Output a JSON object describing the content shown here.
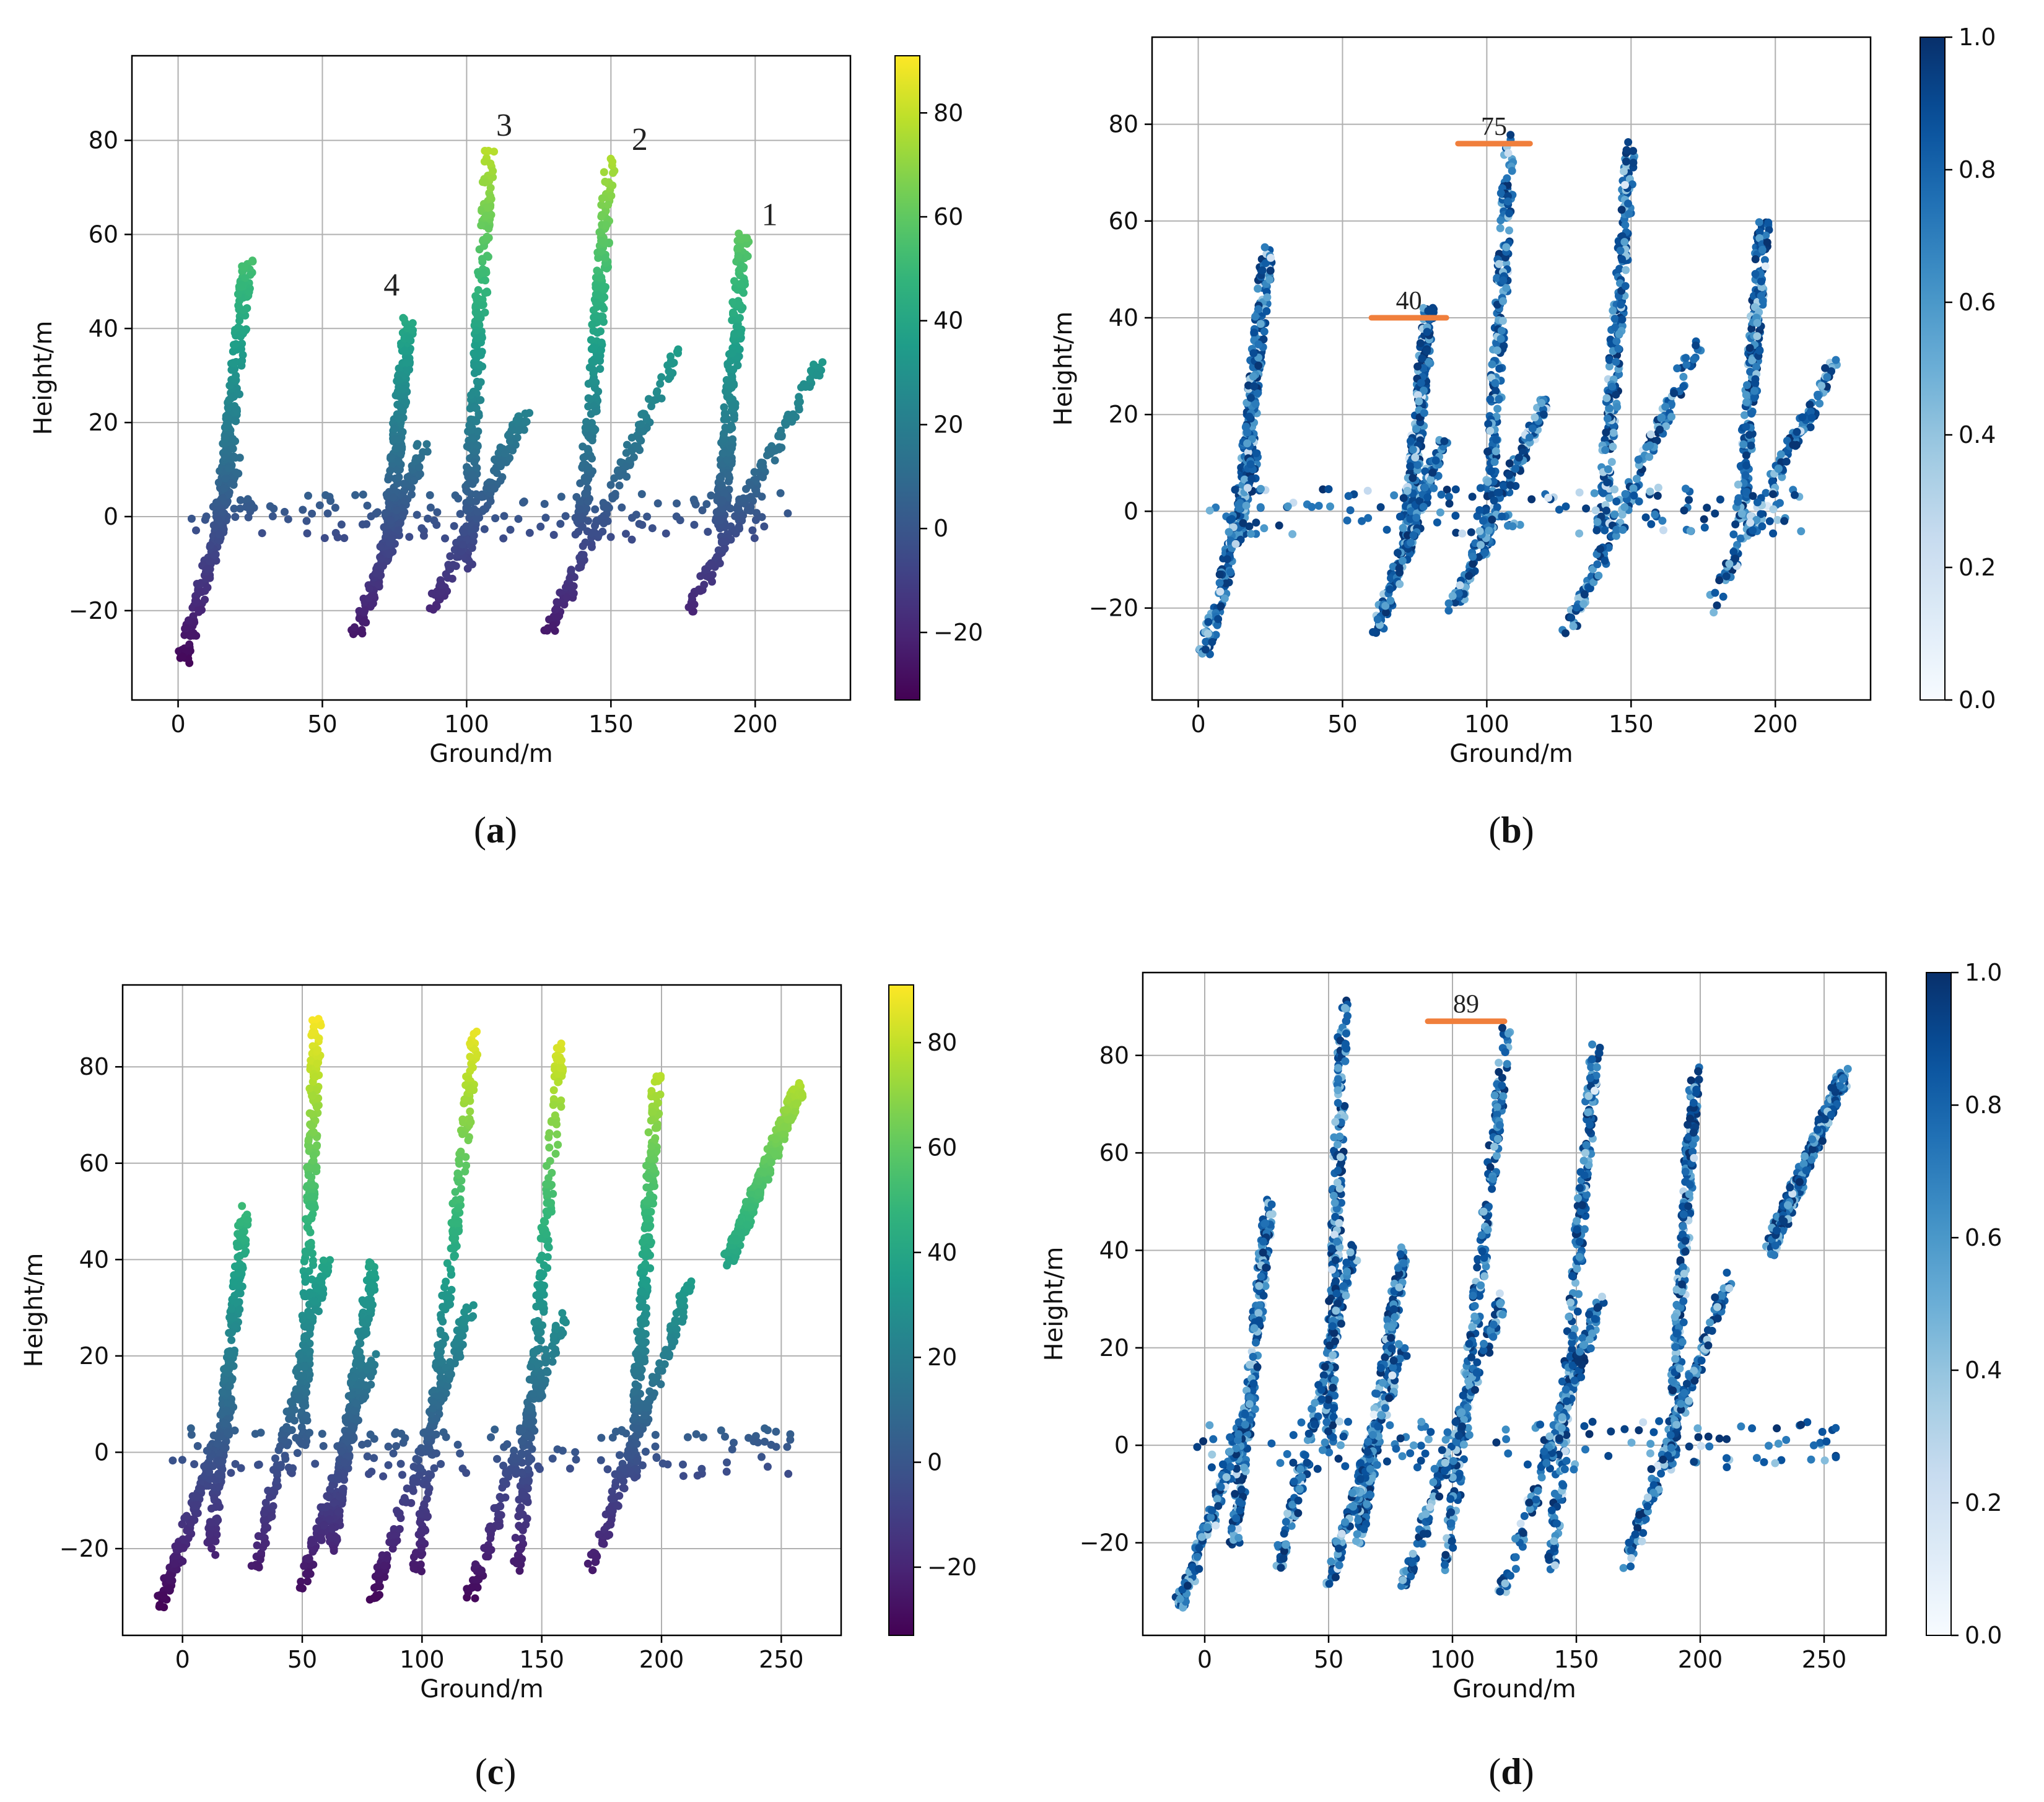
{
  "figure": {
    "panels": [
      "a",
      "b",
      "c",
      "d"
    ]
  },
  "chart_data": [
    {
      "id": "a",
      "type": "scatter",
      "panel_label": "a",
      "xlabel": "Ground/m",
      "ylabel": "Height/m",
      "xlim": [
        -16,
        233
      ],
      "ylim": [
        -39,
        98
      ],
      "xticks": [
        0,
        50,
        100,
        150,
        200
      ],
      "yticks": [
        -20,
        0,
        20,
        40,
        60,
        80
      ],
      "grid": true,
      "colorbar": {
        "colormap": "viridis",
        "label": "",
        "range": [
          -33,
          91
        ],
        "ticks": [
          -20,
          0,
          20,
          40,
          60,
          80
        ]
      },
      "color_by": "height",
      "annotations": [
        {
          "text": "1",
          "x": 205,
          "y": 62
        },
        {
          "text": "2",
          "x": 160,
          "y": 78
        },
        {
          "text": "3",
          "x": 113,
          "y": 81
        },
        {
          "text": "4",
          "x": 74,
          "y": 47
        }
      ],
      "structures": [
        {
          "name": "building-1",
          "x0": 188,
          "y0": -2,
          "x1": 196,
          "y1": 60,
          "ramp": [
            177,
            -20,
            222,
            32
          ]
        },
        {
          "name": "building-2",
          "x0": 140,
          "y0": -3,
          "x1": 150,
          "y1": 76,
          "ramp": [
            128,
            -25,
            173,
            35
          ]
        },
        {
          "name": "building-3",
          "x0": 100,
          "y0": -10,
          "x1": 108,
          "y1": 78,
          "ramp": [
            88,
            -20,
            120,
            22
          ]
        },
        {
          "name": "building-4",
          "x0": 72,
          "y0": -8,
          "x1": 80,
          "y1": 42,
          "ramp": [
            62,
            -25,
            85,
            15
          ]
        },
        {
          "name": "building-5",
          "x0": 14,
          "y0": -5,
          "x1": 24,
          "y1": 54,
          "ramp": [
            2,
            -30,
            20,
            12
          ]
        }
      ]
    },
    {
      "id": "b",
      "type": "scatter",
      "panel_label": "b",
      "xlabel": "Ground/m",
      "ylabel": "Height/m",
      "xlim": [
        -16,
        233
      ],
      "ylim": [
        -39,
        98
      ],
      "xticks": [
        0,
        50,
        100,
        150,
        200
      ],
      "yticks": [
        -20,
        0,
        20,
        40,
        60,
        80
      ],
      "grid": true,
      "colorbar": {
        "colormap": "Blues",
        "label": "",
        "range": [
          0.0,
          1.0
        ],
        "ticks": [
          0.0,
          0.2,
          0.4,
          0.6,
          0.8,
          1.0
        ]
      },
      "color_by": "coherence",
      "markers": [
        {
          "text": "40",
          "x0": 60,
          "x1": 86,
          "y": 40
        },
        {
          "text": "75",
          "x0": 90,
          "x1": 115,
          "y": 76
        }
      ],
      "structures": [
        {
          "name": "building-1",
          "x0": 188,
          "y0": -2,
          "x1": 196,
          "y1": 60,
          "ramp": [
            177,
            -20,
            222,
            32
          ]
        },
        {
          "name": "building-2",
          "x0": 140,
          "y0": -3,
          "x1": 150,
          "y1": 76,
          "ramp": [
            128,
            -25,
            173,
            35
          ]
        },
        {
          "name": "building-3",
          "x0": 100,
          "y0": -10,
          "x1": 108,
          "y1": 78,
          "ramp": [
            88,
            -20,
            120,
            22
          ]
        },
        {
          "name": "building-4",
          "x0": 72,
          "y0": -8,
          "x1": 80,
          "y1": 42,
          "ramp": [
            62,
            -25,
            85,
            15
          ]
        },
        {
          "name": "building-5",
          "x0": 14,
          "y0": -5,
          "x1": 24,
          "y1": 54,
          "ramp": [
            2,
            -30,
            20,
            12
          ]
        }
      ]
    },
    {
      "id": "c",
      "type": "scatter",
      "panel_label": "c",
      "xlabel": "Ground/m",
      "ylabel": "Height/m",
      "xlim": [
        -25,
        275
      ],
      "ylim": [
        -38,
        97
      ],
      "xticks": [
        0,
        50,
        100,
        150,
        200,
        250
      ],
      "yticks": [
        -20,
        0,
        20,
        40,
        60,
        80
      ],
      "grid": true,
      "colorbar": {
        "colormap": "viridis",
        "label": "",
        "range": [
          -33,
          91
        ],
        "ticks": [
          -20,
          0,
          20,
          40,
          60,
          80
        ]
      },
      "color_by": "height",
      "structures": [
        {
          "name": "building-1",
          "x0": 188,
          "y0": -5,
          "x1": 198,
          "y1": 78,
          "ramp": [
            170,
            -25,
            212,
            35
          ]
        },
        {
          "name": "building-2",
          "x0": 140,
          "y0": -25,
          "x1": 158,
          "y1": 84,
          "ramp": [
            120,
            -30,
            160,
            30
          ]
        },
        {
          "name": "building-3",
          "x0": 98,
          "y0": -25,
          "x1": 122,
          "y1": 86,
          "ramp": [
            80,
            -30,
            120,
            30
          ]
        },
        {
          "name": "building-4",
          "x0": 62,
          "y0": -20,
          "x1": 80,
          "y1": 40,
          "ramp": [
            50,
            -28,
            80,
            20
          ]
        },
        {
          "name": "building-5",
          "x0": 12,
          "y0": -20,
          "x1": 26,
          "y1": 50,
          "ramp": [
            -10,
            -33,
            20,
            10
          ]
        },
        {
          "name": "building-6",
          "x0": 50,
          "y0": 0,
          "x1": 56,
          "y1": 90,
          "ramp": [
            30,
            -25,
            60,
            40
          ]
        },
        {
          "name": "building-7",
          "x0": 228,
          "y0": 40,
          "x1": 258,
          "y1": 76,
          "ramp": [
            228,
            40,
            258,
            76
          ]
        }
      ]
    },
    {
      "id": "d",
      "type": "scatter",
      "panel_label": "d",
      "xlabel": "Ground/m",
      "ylabel": "Height/m",
      "xlim": [
        -25,
        275
      ],
      "ylim": [
        -39,
        97
      ],
      "xticks": [
        0,
        50,
        100,
        150,
        200,
        250
      ],
      "yticks": [
        -20,
        0,
        20,
        40,
        60,
        80
      ],
      "grid": true,
      "colorbar": {
        "colormap": "Blues",
        "label": "",
        "range": [
          0.0,
          1.0
        ],
        "ticks": [
          0.0,
          0.2,
          0.4,
          0.6,
          0.8,
          1.0
        ]
      },
      "color_by": "coherence",
      "markers": [
        {
          "text": "89",
          "x0": 90,
          "x1": 121,
          "y": 87
        }
      ],
      "structures": [
        {
          "name": "building-1",
          "x0": 188,
          "y0": -5,
          "x1": 198,
          "y1": 78,
          "ramp": [
            170,
            -25,
            212,
            35
          ]
        },
        {
          "name": "building-2",
          "x0": 140,
          "y0": -25,
          "x1": 158,
          "y1": 84,
          "ramp": [
            120,
            -30,
            160,
            30
          ]
        },
        {
          "name": "building-3",
          "x0": 98,
          "y0": -25,
          "x1": 122,
          "y1": 86,
          "ramp": [
            80,
            -30,
            120,
            30
          ]
        },
        {
          "name": "building-4",
          "x0": 62,
          "y0": -20,
          "x1": 80,
          "y1": 40,
          "ramp": [
            50,
            -28,
            80,
            20
          ]
        },
        {
          "name": "building-5",
          "x0": 12,
          "y0": -20,
          "x1": 26,
          "y1": 50,
          "ramp": [
            -10,
            -33,
            20,
            10
          ]
        },
        {
          "name": "building-6",
          "x0": 50,
          "y0": 0,
          "x1": 56,
          "y1": 90,
          "ramp": [
            30,
            -25,
            60,
            40
          ]
        },
        {
          "name": "building-7",
          "x0": 228,
          "y0": 40,
          "x1": 258,
          "y1": 76,
          "ramp": [
            228,
            40,
            258,
            76
          ]
        }
      ]
    }
  ]
}
